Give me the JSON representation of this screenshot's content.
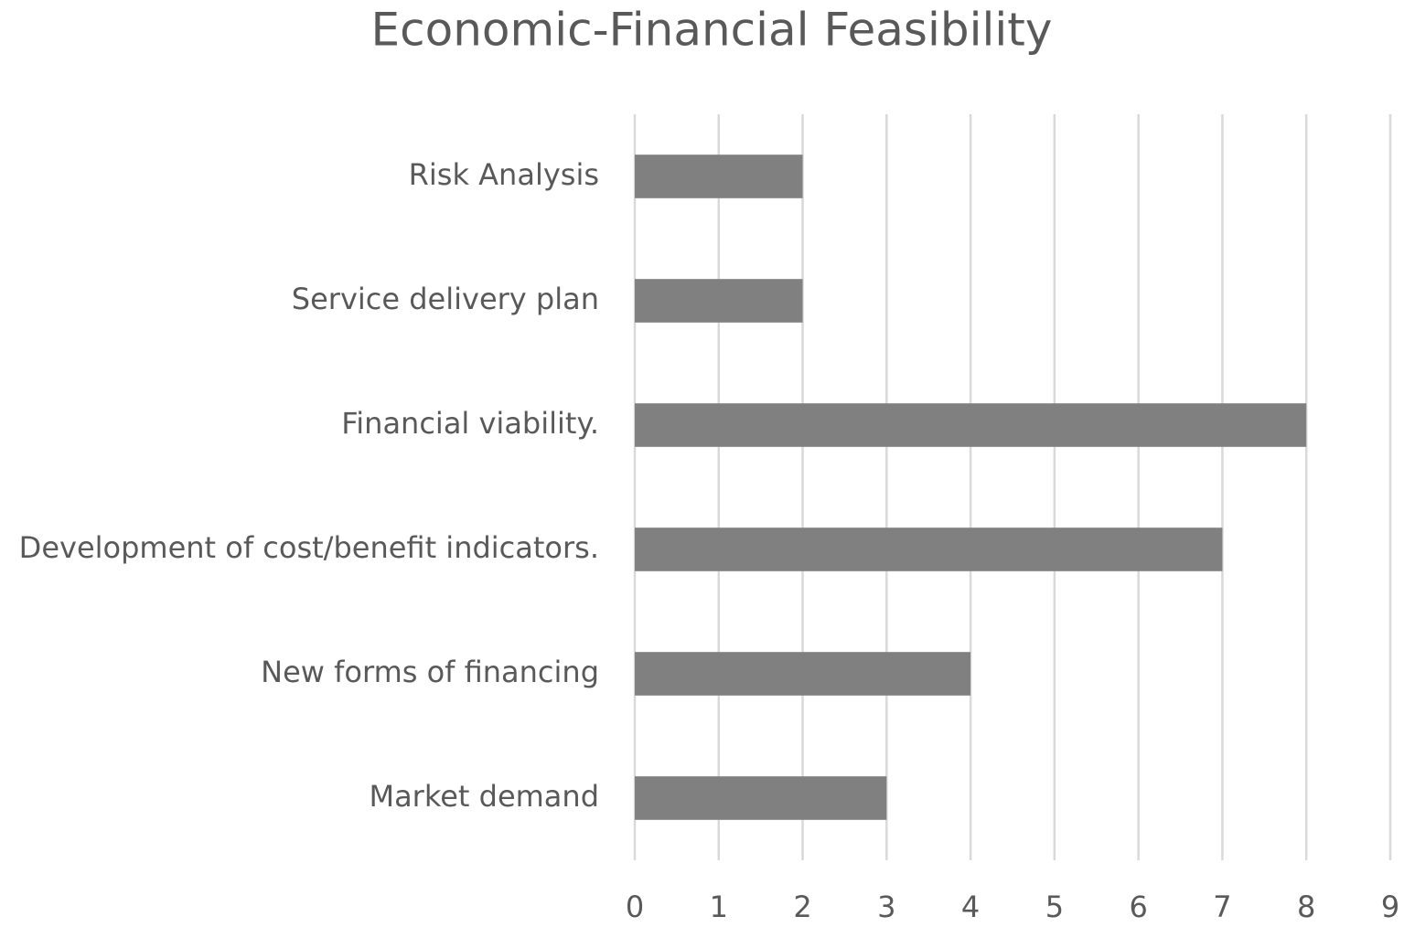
{
  "chart_data": {
    "type": "bar",
    "orientation": "horizontal",
    "title": "Economic-Financial Feasibility",
    "categories": [
      "Risk Analysis",
      "Service delivery plan",
      "Financial viability.",
      "Development of cost/benefit indicators.",
      "New forms of financing",
      "Market demand"
    ],
    "values": [
      2,
      2,
      8,
      7,
      4,
      3
    ],
    "color": "#808080",
    "xlim": [
      0,
      9
    ],
    "xticks": [
      0,
      1,
      2,
      3,
      4,
      5,
      6,
      7,
      8,
      9
    ],
    "grid": true
  }
}
